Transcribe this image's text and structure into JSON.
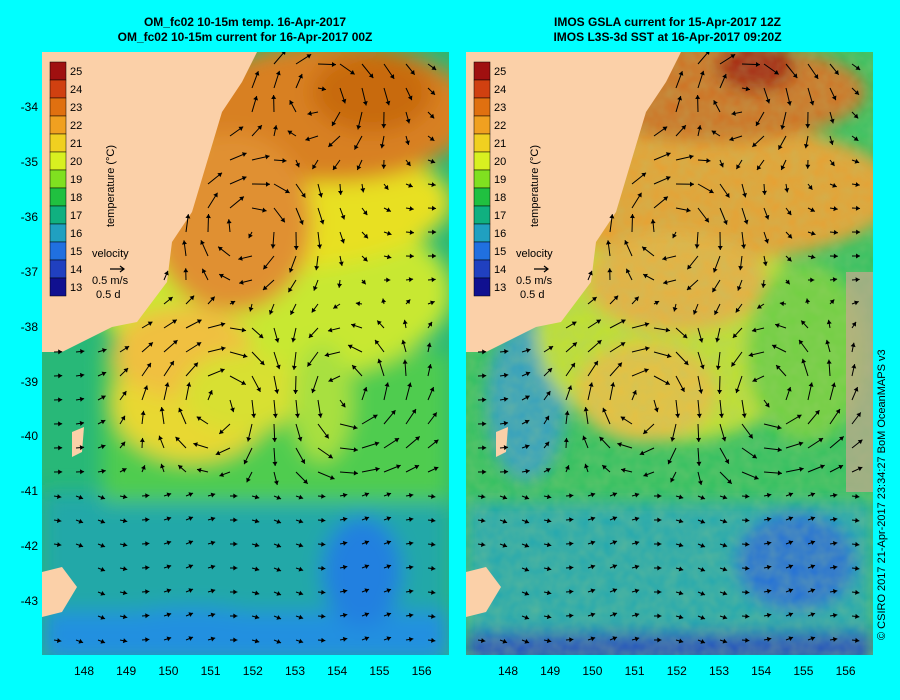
{
  "left_panel": {
    "title_line1": "OM_fc02 10-15m temp. 16-Apr-2017",
    "title_line2": "OM_fc02 10-15m current for 16-Apr-2017 00Z"
  },
  "right_panel": {
    "title_line1": "IMOS GSLA current for 15-Apr-2017 12Z",
    "title_line2": "IMOS L3S-3d SST at 16-Apr-2017 09:20Z"
  },
  "colorbar": {
    "label": "temperature (°C)",
    "ticks": [
      "25",
      "24",
      "23",
      "22",
      "21",
      "20",
      "19",
      "18",
      "17",
      "16",
      "15",
      "14",
      "13"
    ],
    "colors": [
      "#a01010",
      "#d04010",
      "#e07010",
      "#f0a020",
      "#f0d020",
      "#d8f020",
      "#80e020",
      "#20c040",
      "#10b080",
      "#20a0c0",
      "#2070e0",
      "#2040c0",
      "#101090"
    ]
  },
  "velocity_legend": {
    "label": "velocity",
    "speed": "0.5 m/s",
    "duration": "0.5 d"
  },
  "latitude_ticks": [
    "-34",
    "-35",
    "-36",
    "-37",
    "-38",
    "-39",
    "-40",
    "-41",
    "-42",
    "-43"
  ],
  "longitude_ticks": [
    "148",
    "149",
    "150",
    "151",
    "152",
    "153",
    "154",
    "155",
    "156"
  ],
  "copyright": "© CSIRO 2017   21-Apr-2017 23:34:27 BoM OceanMAPS v3",
  "colors": {
    "background": "#00ffff",
    "land": "#fbd0a8",
    "warm": "#e08a20",
    "mid": "#f0e020",
    "cool": "#30c060",
    "cold": "#2090e0"
  }
}
